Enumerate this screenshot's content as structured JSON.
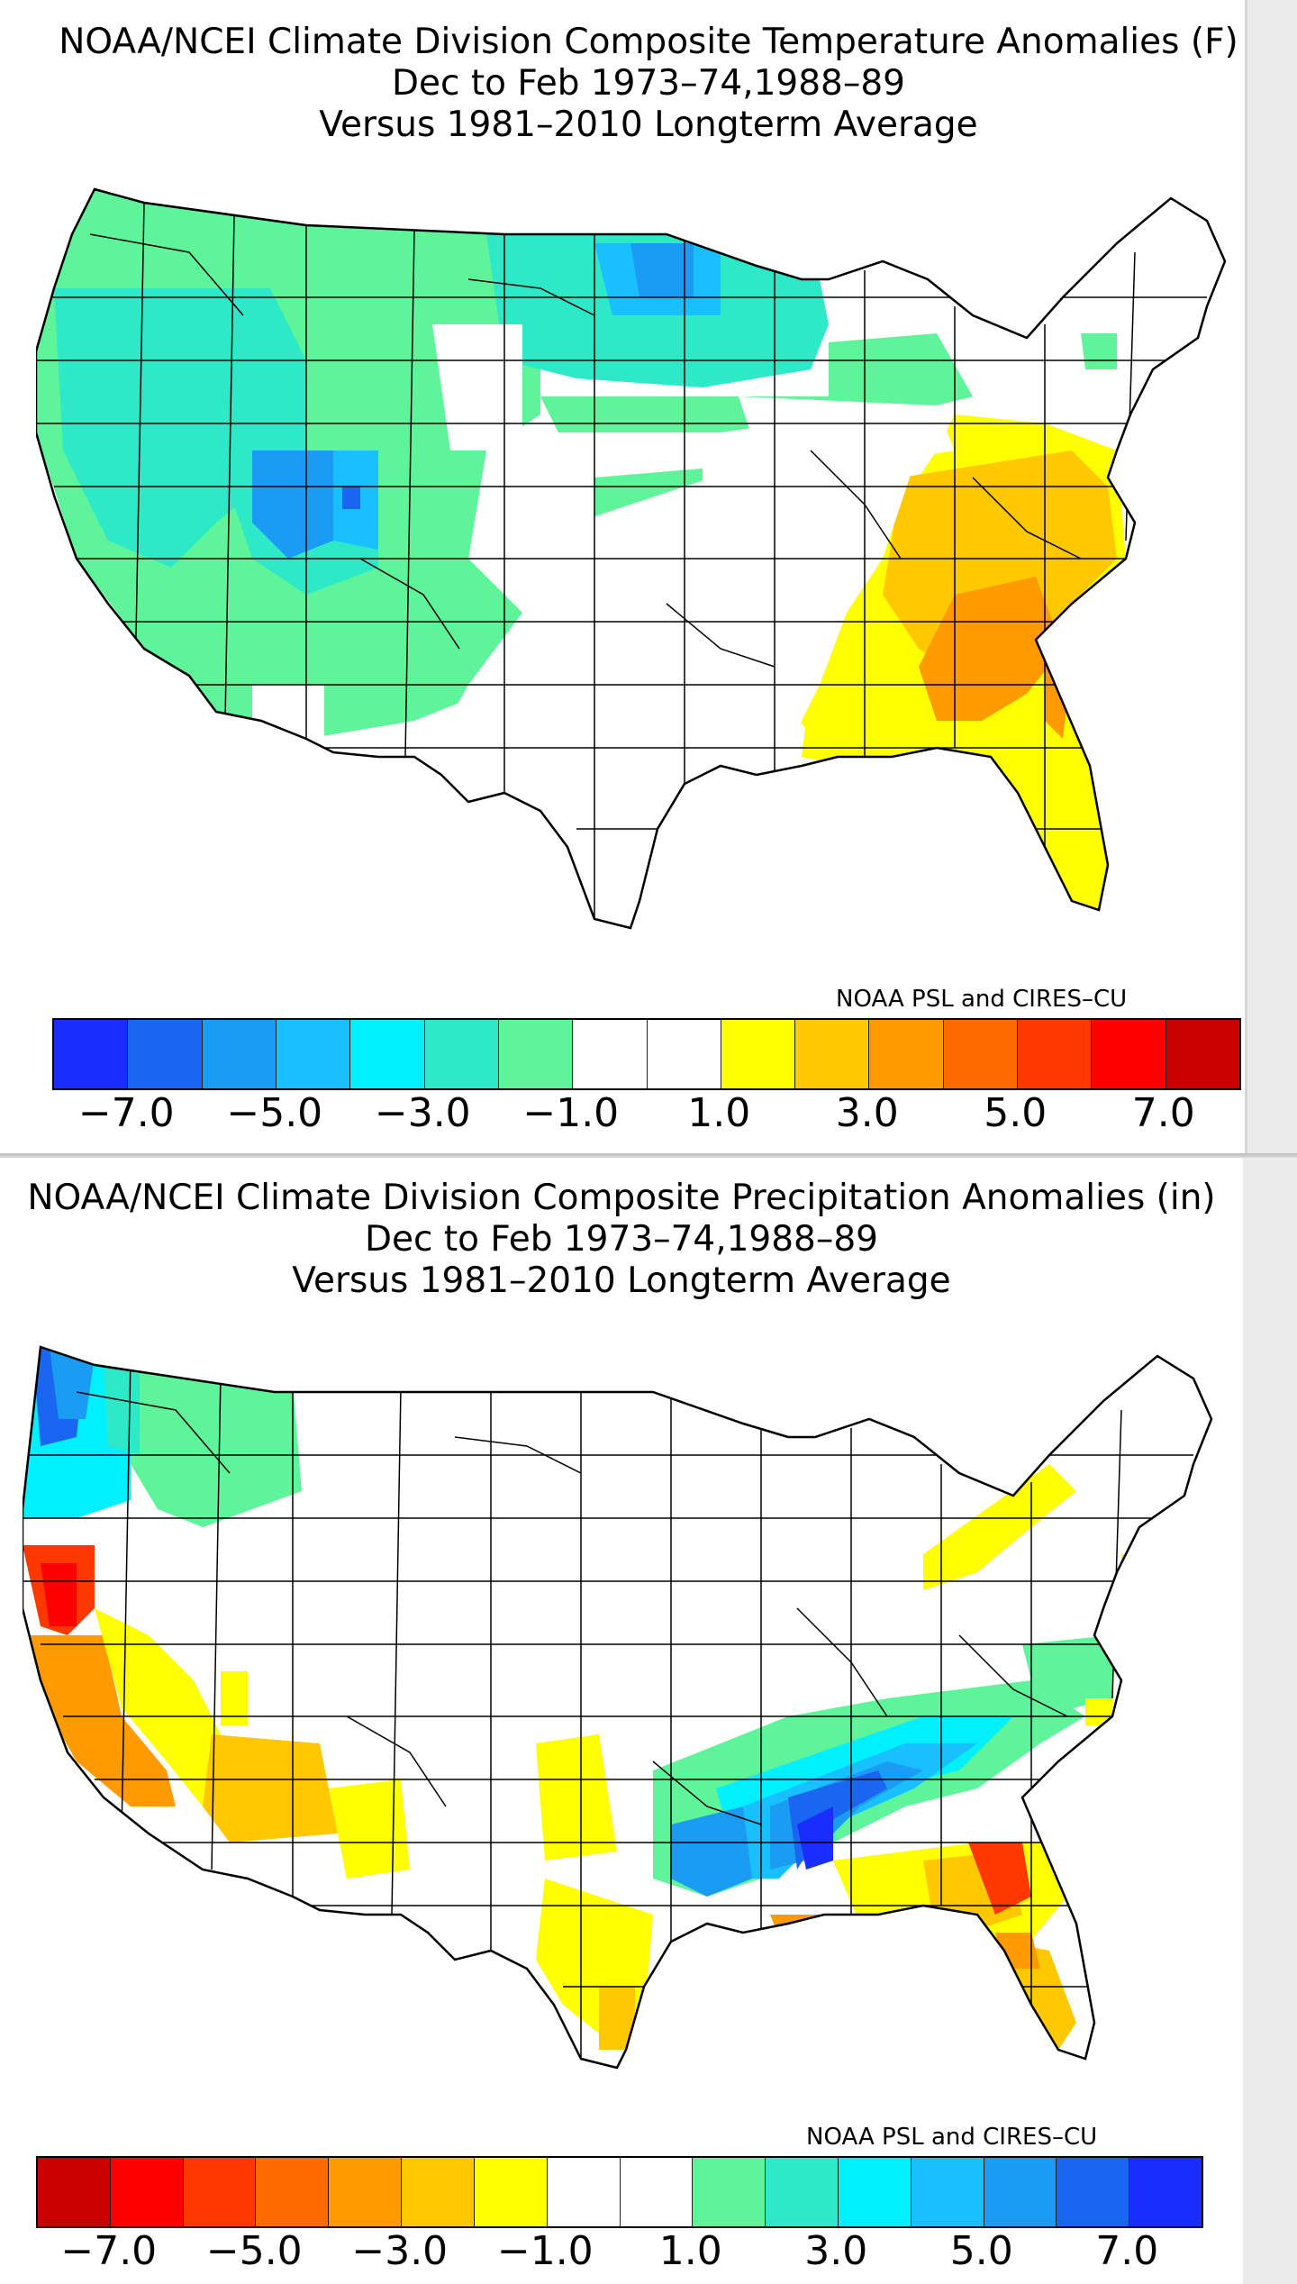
{
  "temperature_map": {
    "title_lines": [
      "NOAA/NCEI Climate Division Composite Temperature Anomalies (F)",
      "Dec to Feb  1973–74,1988–89",
      "Versus 1981–2010 Longterm Average"
    ],
    "credit": "NOAA PSL and CIRES–CU",
    "colorbar": {
      "colors": [
        "#1a2dff",
        "#1b66f0",
        "#1a9cf5",
        "#19c0ff",
        "#00f0ff",
        "#2ee9c8",
        "#5ef59a",
        "#ffffff",
        "#ffffff",
        "#ffff00",
        "#ffc800",
        "#ff9b00",
        "#ff6a00",
        "#ff3800",
        "#ff0000",
        "#c80000"
      ],
      "tick_labels": [
        "−7.0",
        "−5.0",
        "−3.0",
        "−1.0",
        "1.0",
        "3.0",
        "5.0",
        "7.0"
      ]
    }
  },
  "precipitation_map": {
    "title_lines": [
      "NOAA/NCEI Climate Division Composite Precipitation Anomalies (in)",
      "Dec to Feb  1973–74,1988–89",
      "Versus 1981–2010 Longterm Average"
    ],
    "credit": "NOAA PSL and CIRES–CU",
    "colorbar": {
      "colors": [
        "#c80000",
        "#ff0000",
        "#ff3800",
        "#ff6a00",
        "#ff9b00",
        "#ffc800",
        "#ffff00",
        "#ffffff",
        "#ffffff",
        "#5ef59a",
        "#2ee9c8",
        "#00f0ff",
        "#19c0ff",
        "#1a9cf5",
        "#1b66f0",
        "#1a2dff"
      ],
      "tick_labels": [
        "−7.0",
        "−5.0",
        "−3.0",
        "−1.0",
        "1.0",
        "3.0",
        "5.0",
        "7.0"
      ]
    }
  }
}
